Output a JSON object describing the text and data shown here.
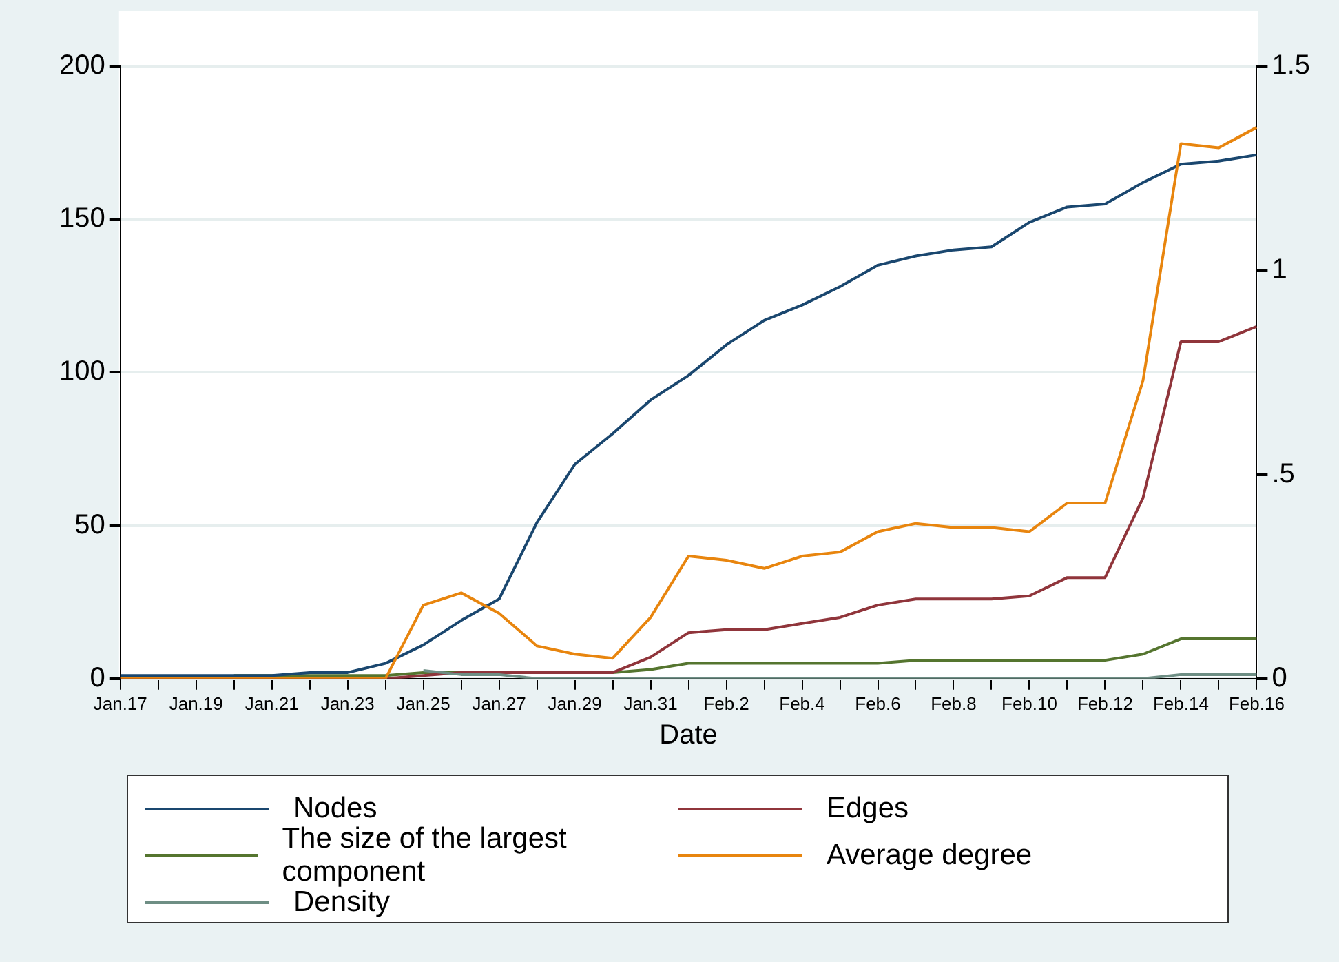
{
  "chart_data": {
    "type": "line",
    "xlabel": "Date",
    "categories": [
      "Jan.17",
      null,
      "Jan.19",
      null,
      "Jan.21",
      null,
      "Jan.23",
      null,
      "Jan.25",
      null,
      "Jan.27",
      null,
      "Jan.29",
      null,
      "Jan.31",
      null,
      "Feb.2",
      null,
      "Feb.4",
      null,
      "Feb.6",
      null,
      "Feb.8",
      null,
      "Feb.10",
      null,
      "Feb.12",
      null,
      "Feb.14",
      null,
      "Feb.16"
    ],
    "series": [
      {
        "name": "Nodes",
        "color": "#1a476f",
        "values": [
          1,
          1,
          1,
          1,
          1,
          2,
          2,
          5,
          11,
          19,
          26,
          51,
          70,
          80,
          91,
          99,
          109,
          117,
          122,
          128,
          135,
          138,
          140,
          141,
          149,
          154,
          155,
          162,
          168,
          169,
          171
        ]
      },
      {
        "name": "Edges",
        "color": "#90353b",
        "values": [
          0,
          0,
          0,
          0,
          0,
          0,
          0,
          0,
          1,
          2,
          2,
          2,
          2,
          2,
          7,
          15,
          16,
          16,
          18,
          20,
          24,
          26,
          26,
          26,
          27,
          33,
          33,
          59,
          110,
          110,
          115
        ]
      },
      {
        "name": "The size of the largest component",
        "color": "#55752f",
        "values": [
          null,
          null,
          null,
          1,
          1,
          1,
          1,
          1,
          2,
          2,
          2,
          2,
          2,
          2,
          3,
          5,
          5,
          5,
          5,
          5,
          5,
          6,
          6,
          6,
          6,
          6,
          6,
          8,
          13,
          13,
          13
        ]
      },
      {
        "name": "Average degree",
        "color": "#e8850e",
        "axis": "y2",
        "values": [
          0,
          0,
          0,
          0,
          0,
          0,
          0,
          0,
          0.18,
          0.21,
          0.16,
          0.08,
          0.06,
          0.05,
          0.15,
          0.3,
          0.29,
          0.27,
          0.3,
          0.31,
          0.36,
          0.38,
          0.37,
          0.37,
          0.36,
          0.43,
          0.43,
          0.73,
          1.31,
          1.3,
          1.35
        ]
      },
      {
        "name": "Density",
        "color": "#6e8e84",
        "axis": "y2",
        "values": [
          null,
          null,
          null,
          null,
          null,
          null,
          null,
          null,
          0.02,
          0.01,
          0.01,
          0,
          0,
          0,
          0,
          0,
          0,
          0,
          0,
          0,
          0,
          0,
          0,
          0,
          0,
          0,
          0,
          0,
          0.01,
          0.01,
          0.01
        ]
      }
    ],
    "ylim": [
      0,
      200
    ],
    "yticks": [
      0,
      50,
      100,
      150,
      200
    ],
    "y2lim": [
      0,
      1.5
    ],
    "y2ticks": [
      {
        "value": 0,
        "label": "0"
      },
      {
        "value": 0.5,
        "label": ".5"
      },
      {
        "value": 1,
        "label": "1"
      },
      {
        "value": 1.5,
        "label": "1.5"
      }
    ],
    "grid": "y",
    "legend": "bottom",
    "marker": "none",
    "line_style": "solid"
  }
}
